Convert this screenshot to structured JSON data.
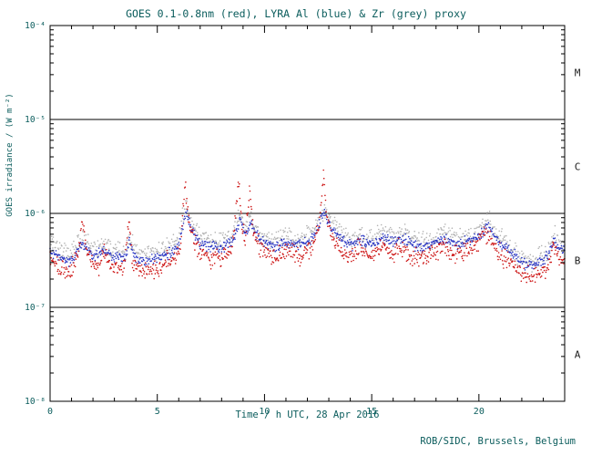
{
  "chart_data": {
    "type": "scatter",
    "title": "GOES 0.1-0.8nm (red), LYRA Al (blue) & Zr (grey) proxy",
    "xlabel": "Time / h UTC, 28 Apr 2016",
    "ylabel": "GOES irradiance / (W m⁻²)",
    "credit": "ROB/SIDC, Brussels, Belgium",
    "xlim": [
      0,
      24
    ],
    "ylim": [
      1e-08,
      0.0001
    ],
    "y_log": true,
    "x_major_ticks": [
      0,
      5,
      10,
      15,
      20
    ],
    "x_minor_step": 1,
    "y_decade_labels": [
      {
        "exp": -4,
        "label": "10⁻⁴"
      },
      {
        "exp": -5,
        "label": "10⁻⁵"
      },
      {
        "exp": -6,
        "label": "10⁻⁶"
      },
      {
        "exp": -7,
        "label": "10⁻⁷"
      },
      {
        "exp": -8,
        "label": "10⁻⁸"
      }
    ],
    "hlines": [
      1e-05,
      1e-06,
      1e-07
    ],
    "flare_classes": [
      {
        "label": "M",
        "center_exp": -4.5
      },
      {
        "label": "C",
        "center_exp": -5.5
      },
      {
        "label": "B",
        "center_exp": -6.5
      },
      {
        "label": "A",
        "center_exp": -7.5
      }
    ],
    "colors": {
      "axis": "#000000",
      "text": "#0a5c5c",
      "class_letters": "#1a1a1a"
    },
    "series": [
      {
        "name": "Zr proxy",
        "color": "#b3b3b3",
        "jitter": 0.05,
        "points": [
          [
            0,
            4.8e-07
          ],
          [
            0.5,
            4.1e-07
          ],
          [
            1.0,
            3.7e-07
          ],
          [
            1.5,
            5.5e-07
          ],
          [
            2.0,
            4.1e-07
          ],
          [
            2.5,
            4.7e-07
          ],
          [
            3.0,
            4e-07
          ],
          [
            3.5,
            3.9e-07
          ],
          [
            3.7,
            5.6e-07
          ],
          [
            4.0,
            3.8e-07
          ],
          [
            4.5,
            3.7e-07
          ],
          [
            5.0,
            3.9e-07
          ],
          [
            5.5,
            4.3e-07
          ],
          [
            6.0,
            5.4e-07
          ],
          [
            6.35,
            1.25e-06
          ],
          [
            6.6,
            7.6e-07
          ],
          [
            7.0,
            5.8e-07
          ],
          [
            7.5,
            5.2e-07
          ],
          [
            8.0,
            5e-07
          ],
          [
            8.5,
            5.8e-07
          ],
          [
            8.85,
            9.5e-07
          ],
          [
            9.1,
            6.8e-07
          ],
          [
            9.35,
            9e-07
          ],
          [
            9.6,
            6.8e-07
          ],
          [
            10,
            5.5e-07
          ],
          [
            10.5,
            5.1e-07
          ],
          [
            11,
            5.7e-07
          ],
          [
            11.5,
            5.2e-07
          ],
          [
            12,
            5.7e-07
          ],
          [
            12.4,
            6.8e-07
          ],
          [
            12.8,
            1.2e-06
          ],
          [
            13.1,
            8e-07
          ],
          [
            13.5,
            6.2e-07
          ],
          [
            14,
            5.3e-07
          ],
          [
            14.5,
            6e-07
          ],
          [
            15,
            5.3e-07
          ],
          [
            15.5,
            6.4e-07
          ],
          [
            16,
            5.7e-07
          ],
          [
            16.5,
            6.2e-07
          ],
          [
            17,
            5.2e-07
          ],
          [
            17.5,
            5e-07
          ],
          [
            18,
            5.7e-07
          ],
          [
            18.5,
            6.2e-07
          ],
          [
            19,
            5.3e-07
          ],
          [
            19.5,
            5.7e-07
          ],
          [
            20,
            6.4e-07
          ],
          [
            20.4,
            8.5e-07
          ],
          [
            20.8,
            6.2e-07
          ],
          [
            21.2,
            5e-07
          ],
          [
            21.6,
            4.1e-07
          ],
          [
            22,
            3.4e-07
          ],
          [
            22.4,
            3.1e-07
          ],
          [
            22.8,
            3.4e-07
          ],
          [
            23.2,
            3.9e-07
          ],
          [
            23.5,
            5.7e-07
          ],
          [
            24,
            4.6e-07
          ]
        ]
      },
      {
        "name": "LYRA Al",
        "color": "#2633c4",
        "jitter": 0.028,
        "points": [
          [
            0,
            4e-07
          ],
          [
            0.5,
            3.4e-07
          ],
          [
            1.0,
            3.1e-07
          ],
          [
            1.5,
            5e-07
          ],
          [
            2.0,
            3.4e-07
          ],
          [
            2.5,
            4e-07
          ],
          [
            3.0,
            3.4e-07
          ],
          [
            3.5,
            3.3e-07
          ],
          [
            3.7,
            5e-07
          ],
          [
            4.0,
            3.2e-07
          ],
          [
            4.5,
            3.1e-07
          ],
          [
            5.0,
            3.3e-07
          ],
          [
            5.5,
            3.6e-07
          ],
          [
            6.0,
            4.6e-07
          ],
          [
            6.35,
            1.05e-06
          ],
          [
            6.6,
            6.5e-07
          ],
          [
            7.0,
            5e-07
          ],
          [
            7.5,
            4.4e-07
          ],
          [
            8.0,
            4.3e-07
          ],
          [
            8.5,
            5e-07
          ],
          [
            8.85,
            8.5e-07
          ],
          [
            9.1,
            6e-07
          ],
          [
            9.35,
            8e-07
          ],
          [
            9.6,
            6e-07
          ],
          [
            10,
            4.8e-07
          ],
          [
            10.5,
            4.4e-07
          ],
          [
            11,
            5e-07
          ],
          [
            11.5,
            4.5e-07
          ],
          [
            12,
            5e-07
          ],
          [
            12.4,
            6e-07
          ],
          [
            12.8,
            1.05e-06
          ],
          [
            13.1,
            7e-07
          ],
          [
            13.5,
            5.4e-07
          ],
          [
            14,
            4.6e-07
          ],
          [
            14.5,
            5.2e-07
          ],
          [
            15,
            4.6e-07
          ],
          [
            15.5,
            5.6e-07
          ],
          [
            16,
            5e-07
          ],
          [
            16.5,
            5.4e-07
          ],
          [
            17,
            4.5e-07
          ],
          [
            17.5,
            4.4e-07
          ],
          [
            18,
            5e-07
          ],
          [
            18.5,
            5.4e-07
          ],
          [
            19,
            4.6e-07
          ],
          [
            19.5,
            5e-07
          ],
          [
            20,
            5.6e-07
          ],
          [
            20.4,
            7.5e-07
          ],
          [
            20.8,
            5.4e-07
          ],
          [
            21.2,
            4.4e-07
          ],
          [
            21.6,
            3.6e-07
          ],
          [
            22,
            3e-07
          ],
          [
            22.4,
            2.8e-07
          ],
          [
            22.8,
            3e-07
          ],
          [
            23.2,
            3.4e-07
          ],
          [
            23.5,
            5e-07
          ],
          [
            24,
            4e-07
          ]
        ]
      },
      {
        "name": "GOES 0.1-0.8nm",
        "color": "#cc1111",
        "jitter": 0.045,
        "points": [
          [
            0,
            3.2e-07
          ],
          [
            0.3,
            2.9e-07
          ],
          [
            0.7,
            2.6e-07
          ],
          [
            1.0,
            2.5e-07
          ],
          [
            1.3,
            3.5e-07
          ],
          [
            1.5,
            8e-07
          ],
          [
            1.7,
            4e-07
          ],
          [
            1.9,
            2.8e-07
          ],
          [
            2.2,
            2.6e-07
          ],
          [
            2.5,
            3.8e-07
          ],
          [
            2.8,
            3e-07
          ],
          [
            3.1,
            2.7e-07
          ],
          [
            3.4,
            2.6e-07
          ],
          [
            3.7,
            7.5e-07
          ],
          [
            3.85,
            3e-07
          ],
          [
            4.2,
            2.5e-07
          ],
          [
            4.6,
            2.4e-07
          ],
          [
            5.0,
            2.6e-07
          ],
          [
            5.4,
            3e-07
          ],
          [
            5.8,
            3.2e-07
          ],
          [
            6.1,
            5e-07
          ],
          [
            6.3,
            2.2e-06
          ],
          [
            6.45,
            9e-07
          ],
          [
            6.7,
            5e-07
          ],
          [
            7.0,
            4e-07
          ],
          [
            7.4,
            3.4e-07
          ],
          [
            7.8,
            3.3e-07
          ],
          [
            8.2,
            3.6e-07
          ],
          [
            8.5,
            4.2e-07
          ],
          [
            8.8,
            2.4e-06
          ],
          [
            8.95,
            7e-07
          ],
          [
            9.1,
            5e-07
          ],
          [
            9.3,
            1.7e-06
          ],
          [
            9.5,
            6e-07
          ],
          [
            9.8,
            4.2e-07
          ],
          [
            10.1,
            3.8e-07
          ],
          [
            10.4,
            3.4e-07
          ],
          [
            10.8,
            3.6e-07
          ],
          [
            11.1,
            4.2e-07
          ],
          [
            11.4,
            3.6e-07
          ],
          [
            11.7,
            3.4e-07
          ],
          [
            12.0,
            4e-07
          ],
          [
            12.3,
            5e-07
          ],
          [
            12.55,
            7e-07
          ],
          [
            12.75,
            2.8e-06
          ],
          [
            12.9,
            9e-07
          ],
          [
            13.1,
            6e-07
          ],
          [
            13.4,
            4.4e-07
          ],
          [
            13.8,
            3.6e-07
          ],
          [
            14.2,
            3.8e-07
          ],
          [
            14.5,
            4.4e-07
          ],
          [
            14.8,
            3.8e-07
          ],
          [
            15.1,
            3.6e-07
          ],
          [
            15.4,
            4.6e-07
          ],
          [
            15.7,
            4e-07
          ],
          [
            16.0,
            3.8e-07
          ],
          [
            16.4,
            4.4e-07
          ],
          [
            16.8,
            3.6e-07
          ],
          [
            17.2,
            3.4e-07
          ],
          [
            17.6,
            3.5e-07
          ],
          [
            18.0,
            4e-07
          ],
          [
            18.4,
            4.4e-07
          ],
          [
            18.8,
            3.6e-07
          ],
          [
            19.2,
            3.6e-07
          ],
          [
            19.6,
            4e-07
          ],
          [
            19.9,
            4.6e-07
          ],
          [
            20.2,
            6e-07
          ],
          [
            20.5,
            5.5e-07
          ],
          [
            20.8,
            4.2e-07
          ],
          [
            21.2,
            3.4e-07
          ],
          [
            21.6,
            2.8e-07
          ],
          [
            22.0,
            2.3e-07
          ],
          [
            22.4,
            2.1e-07
          ],
          [
            22.8,
            2.2e-07
          ],
          [
            23.2,
            2.6e-07
          ],
          [
            23.5,
            4.5e-07
          ],
          [
            23.75,
            3.2e-07
          ],
          [
            24,
            3e-07
          ]
        ]
      }
    ]
  }
}
